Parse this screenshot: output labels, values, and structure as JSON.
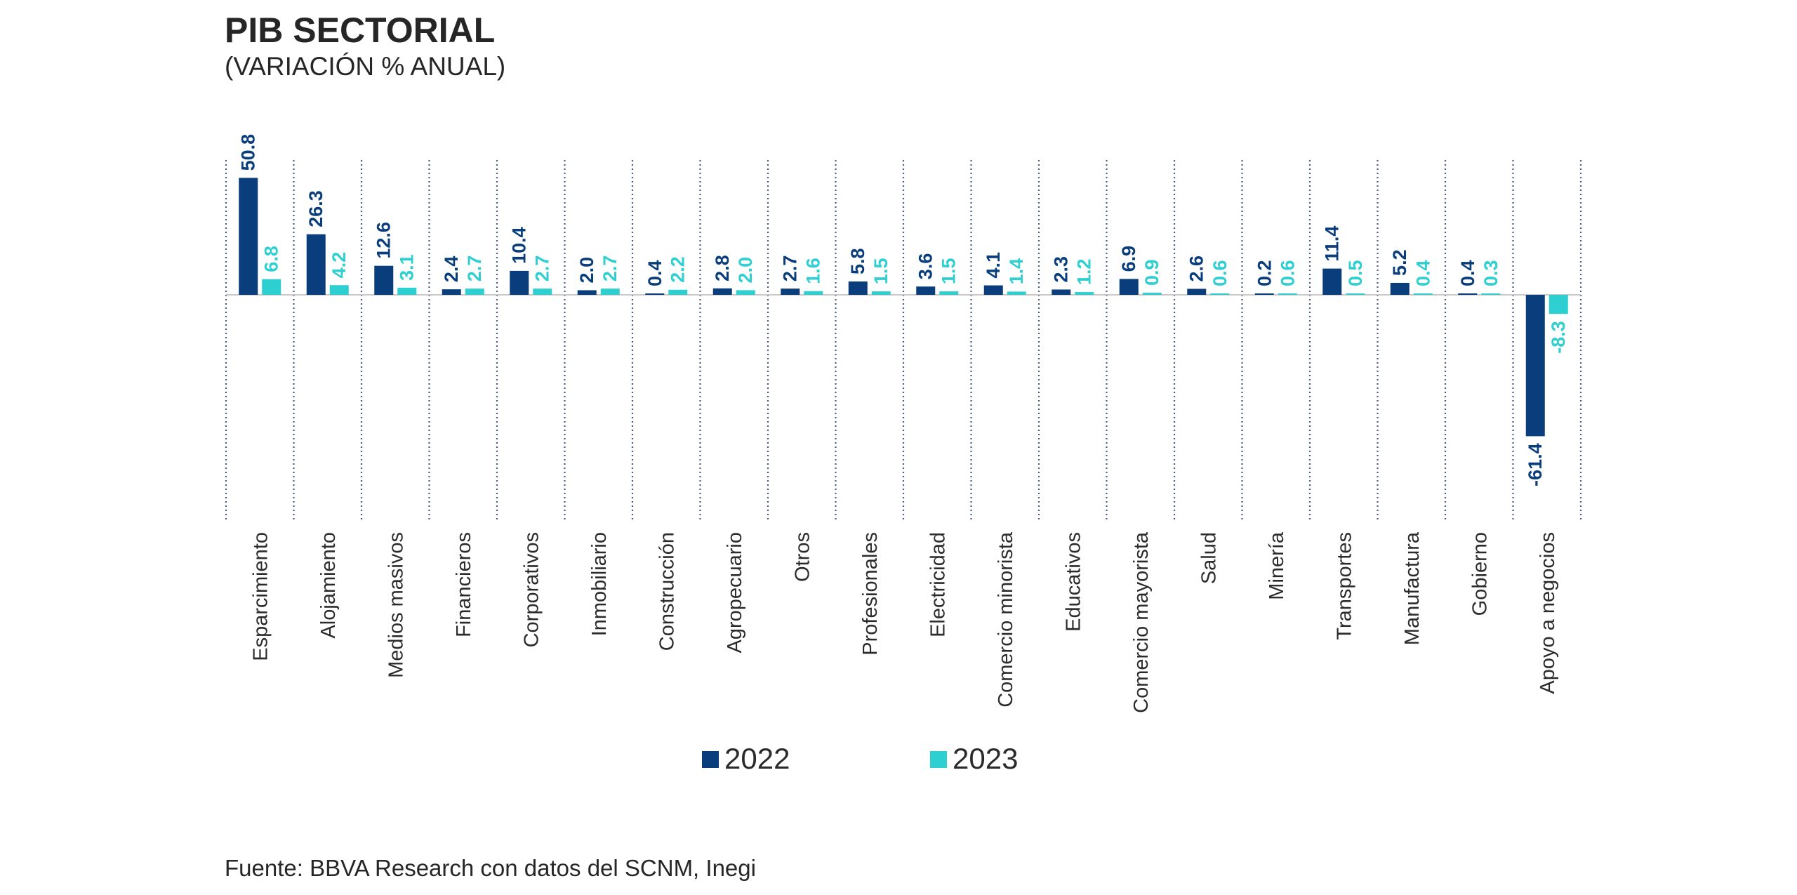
{
  "header": {
    "title": "PIB SECTORIAL",
    "subtitle": "(VARIACIÓN % ANUAL)"
  },
  "footer": {
    "source": "Fuente: BBVA Research con datos del SCNM, Inegi"
  },
  "colors": {
    "series_2022": "#0a3d7c",
    "series_2023": "#2ecfd0",
    "separator": "#4a5a8c",
    "zero_line": "#c9c9c9"
  },
  "chart_data": {
    "type": "bar",
    "title": "PIB SECTORIAL",
    "subtitle": "(VARIACIÓN % ANUAL)",
    "xlabel": "",
    "ylabel": "",
    "ylim": [
      -61.4,
      50.8
    ],
    "grid": false,
    "legend": "bottom-center",
    "categories": [
      "Esparcimiento",
      "Alojamiento",
      "Medios masivos",
      "Financieros",
      "Corporativos",
      "Inmobiliario",
      "Construcción",
      "Agropecuario",
      "Otros",
      "Profesionales",
      "Electricidad",
      "Comercio minorista",
      "Educativos",
      "Comercio mayorista",
      "Salud",
      "Minería",
      "Transportes",
      "Manufactura",
      "Gobierno",
      "Apoyo a negocios"
    ],
    "series": [
      {
        "name": "2022",
        "values": [
          50.8,
          26.3,
          12.6,
          2.4,
          10.4,
          2.0,
          0.4,
          2.8,
          2.7,
          5.8,
          3.6,
          4.1,
          2.3,
          6.9,
          2.6,
          0.2,
          11.4,
          5.2,
          0.4,
          -61.4
        ],
        "labels": [
          "50.8",
          "26.3",
          "12.6",
          "2.4",
          "10.4",
          "2.0",
          "0.4",
          "2.8",
          "2.7",
          "5.8",
          "3.6",
          "4.1",
          "2.3",
          "6.9",
          "2.6",
          "0.2",
          "11.4",
          "5.2",
          "0.4",
          "-61.4"
        ]
      },
      {
        "name": "2023",
        "values": [
          6.8,
          4.2,
          3.1,
          2.7,
          2.7,
          2.7,
          2.2,
          2.0,
          1.6,
          1.5,
          1.5,
          1.4,
          1.2,
          0.9,
          0.6,
          0.6,
          0.5,
          0.4,
          0.3,
          -8.3
        ],
        "labels": [
          "6.8",
          "4.2",
          "3.1",
          "2.7",
          "2.7",
          "2.7",
          "2.2",
          "2.0",
          "1.6",
          "1.5",
          "1.5",
          "1.4",
          "1.2",
          "0.9",
          "0.6",
          "0.6",
          "0.5",
          "0.4",
          "0.3",
          "-8.3"
        ]
      }
    ]
  }
}
